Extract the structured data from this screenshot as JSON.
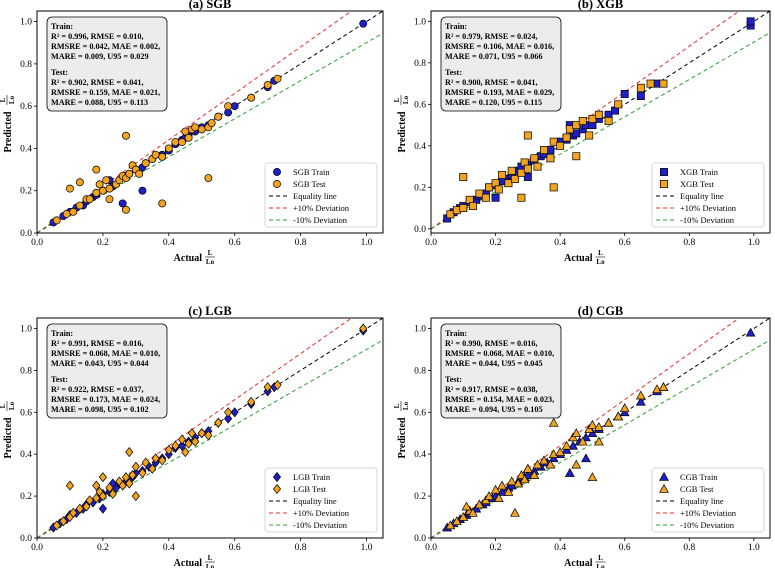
{
  "chart_data": [
    {
      "type": "scatter",
      "title": "(a) SGB",
      "xlabel": "Actual",
      "ylabel": "Predicted",
      "ratio_symbol": {
        "num": "L",
        "den": "Lo"
      },
      "xlim": [
        0,
        1.05
      ],
      "ylim": [
        0,
        1.05
      ],
      "xticks": [
        "0.0",
        "0.2",
        "0.4",
        "0.6",
        "0.8",
        "1.0"
      ],
      "yticks": [
        "0.0",
        "0.2",
        "0.4",
        "0.6",
        "0.8",
        "1.0"
      ],
      "marker": "circle",
      "legend": [
        "SGB Train",
        "SGB Test",
        "Equality line",
        "+10% Deviation",
        "-10% Deviation"
      ],
      "metrics": {
        "train_label": "Train:",
        "train_r2": "R² = 0.996, RMSE = 0.010,",
        "train_l2": "RMSRE = 0.042, MAE = 0.002,",
        "train_l3": "MARE = 0.009, U95 = 0.029",
        "test_label": "Test:",
        "test_r2": "R² = 0.902, RMSE = 0.041,",
        "test_l2": "RMSRE = 0.159, MAE = 0.021,",
        "test_l3": "MARE = 0.088, U95 = 0.113"
      },
      "series": [
        {
          "name": "SGB Train",
          "x": [
            0.05,
            0.08,
            0.1,
            0.12,
            0.14,
            0.15,
            0.17,
            0.18,
            0.2,
            0.22,
            0.23,
            0.25,
            0.27,
            0.28,
            0.3,
            0.32,
            0.33,
            0.35,
            0.38,
            0.4,
            0.42,
            0.44,
            0.45,
            0.46,
            0.48,
            0.5,
            0.52,
            0.55,
            0.58,
            0.6,
            0.65,
            0.7,
            0.72,
            0.99,
            0.22,
            0.26,
            0.32
          ],
          "y": [
            0.05,
            0.08,
            0.1,
            0.12,
            0.13,
            0.15,
            0.17,
            0.18,
            0.2,
            0.21,
            0.22,
            0.25,
            0.27,
            0.28,
            0.3,
            0.31,
            0.33,
            0.35,
            0.37,
            0.39,
            0.42,
            0.44,
            0.45,
            0.46,
            0.48,
            0.5,
            0.51,
            0.55,
            0.57,
            0.6,
            0.64,
            0.69,
            0.72,
            0.99,
            0.25,
            0.14,
            0.2
          ]
        },
        {
          "name": "SGB Test",
          "x": [
            0.06,
            0.09,
            0.1,
            0.11,
            0.13,
            0.15,
            0.16,
            0.18,
            0.19,
            0.2,
            0.21,
            0.22,
            0.24,
            0.25,
            0.26,
            0.27,
            0.28,
            0.29,
            0.3,
            0.31,
            0.33,
            0.35,
            0.36,
            0.38,
            0.4,
            0.42,
            0.44,
            0.45,
            0.46,
            0.47,
            0.48,
            0.5,
            0.52,
            0.53,
            0.55,
            0.58,
            0.65,
            0.7,
            0.73,
            0.27,
            0.18,
            0.38,
            0.22,
            0.27,
            0.13,
            0.52
          ],
          "y": [
            0.06,
            0.09,
            0.21,
            0.1,
            0.13,
            0.16,
            0.16,
            0.19,
            0.23,
            0.2,
            0.25,
            0.21,
            0.23,
            0.25,
            0.27,
            0.26,
            0.28,
            0.32,
            0.3,
            0.28,
            0.33,
            0.35,
            0.37,
            0.36,
            0.4,
            0.43,
            0.43,
            0.48,
            0.45,
            0.49,
            0.5,
            0.49,
            0.5,
            0.52,
            0.55,
            0.6,
            0.64,
            0.7,
            0.73,
            0.46,
            0.3,
            0.14,
            0.16,
            0.11,
            0.24,
            0.26
          ]
        }
      ]
    },
    {
      "type": "scatter",
      "title": "(b) XGB",
      "xlabel": "Actual",
      "ylabel": "Predicted",
      "ratio_symbol": {
        "num": "L",
        "den": "Lo"
      },
      "xlim": [
        0,
        1.05
      ],
      "ylim": [
        -0.02,
        1.05
      ],
      "xticks": [
        "0.0",
        "0.2",
        "0.4",
        "0.6",
        "0.8",
        "1.0"
      ],
      "yticks": [
        "0.0",
        "0.2",
        "0.4",
        "0.6",
        "0.8",
        "1.0"
      ],
      "marker": "square",
      "legend": [
        "XGB Train",
        "XGB Test",
        "Equality line",
        "+10% Deviation",
        "-10% Deviation"
      ],
      "metrics": {
        "train_label": "Train:",
        "train_r2": "R² = 0.979, RMSE = 0.024,",
        "train_l2": "RMSRE = 0.106, MAE = 0.016,",
        "train_l3": "MARE = 0.071, U95 = 0.066",
        "test_label": "Test:",
        "test_r2": "R² = 0.900, RMSE = 0.041,",
        "test_l2": "RMSRE = 0.193, MAE = 0.029,",
        "test_l3": "MARE = 0.120, U95 = 0.115"
      },
      "series": [
        {
          "name": "XGB Train",
          "x": [
            0.05,
            0.07,
            0.09,
            0.1,
            0.12,
            0.14,
            0.15,
            0.17,
            0.18,
            0.2,
            0.22,
            0.24,
            0.25,
            0.27,
            0.28,
            0.3,
            0.32,
            0.34,
            0.35,
            0.37,
            0.4,
            0.42,
            0.44,
            0.45,
            0.47,
            0.48,
            0.5,
            0.52,
            0.55,
            0.57,
            0.6,
            0.65,
            0.7,
            0.99,
            0.99,
            0.43,
            0.3,
            0.2
          ],
          "y": [
            0.05,
            0.08,
            0.1,
            0.11,
            0.13,
            0.14,
            0.16,
            0.17,
            0.2,
            0.21,
            0.23,
            0.24,
            0.26,
            0.28,
            0.3,
            0.31,
            0.33,
            0.35,
            0.36,
            0.38,
            0.42,
            0.43,
            0.45,
            0.46,
            0.48,
            0.5,
            0.5,
            0.53,
            0.55,
            0.57,
            0.65,
            0.64,
            0.7,
            0.98,
            1.0,
            0.5,
            0.25,
            0.15
          ]
        },
        {
          "name": "XGB Test",
          "x": [
            0.06,
            0.08,
            0.1,
            0.12,
            0.13,
            0.15,
            0.17,
            0.18,
            0.2,
            0.21,
            0.22,
            0.24,
            0.25,
            0.26,
            0.28,
            0.29,
            0.3,
            0.32,
            0.33,
            0.35,
            0.37,
            0.38,
            0.4,
            0.42,
            0.43,
            0.45,
            0.47,
            0.49,
            0.5,
            0.52,
            0.55,
            0.58,
            0.65,
            0.68,
            0.72,
            0.3,
            0.1,
            0.28,
            0.38,
            0.45
          ],
          "y": [
            0.07,
            0.09,
            0.1,
            0.14,
            0.11,
            0.17,
            0.15,
            0.2,
            0.22,
            0.19,
            0.26,
            0.22,
            0.28,
            0.24,
            0.27,
            0.32,
            0.29,
            0.34,
            0.3,
            0.38,
            0.34,
            0.42,
            0.4,
            0.44,
            0.48,
            0.5,
            0.52,
            0.45,
            0.53,
            0.55,
            0.52,
            0.6,
            0.68,
            0.7,
            0.7,
            0.45,
            0.25,
            0.15,
            0.2,
            0.35
          ]
        }
      ]
    },
    {
      "type": "scatter",
      "title": "(c) LGB",
      "xlabel": "Actual",
      "ylabel": "Predicted",
      "ratio_symbol": {
        "num": "L",
        "den": "Lo"
      },
      "xlim": [
        0,
        1.05
      ],
      "ylim": [
        0,
        1.05
      ],
      "xticks": [
        "0.0",
        "0.2",
        "0.4",
        "0.6",
        "0.8",
        "1.0"
      ],
      "yticks": [
        "0.0",
        "0.2",
        "0.4",
        "0.6",
        "0.8",
        "1.0"
      ],
      "marker": "diamond",
      "legend": [
        "LGB Train",
        "LGB Test",
        "Equality line",
        "+10% Deviation",
        "-10% Deviation"
      ],
      "metrics": {
        "train_label": "Train:",
        "train_r2": "R² = 0.991, RMSE = 0.016,",
        "train_l2": "RMSRE = 0.068, MAE = 0.010,",
        "train_l3": "MARE = 0.043, U95 = 0.044",
        "test_label": "Test:",
        "test_r2": "R² = 0.922, RMSE = 0.037,",
        "test_l2": "RMSRE = 0.173, MAE = 0.024,",
        "test_l3": "MARE = 0.098, U95 = 0.102"
      },
      "series": [
        {
          "name": "LGB Train",
          "x": [
            0.05,
            0.07,
            0.09,
            0.1,
            0.12,
            0.14,
            0.15,
            0.17,
            0.19,
            0.2,
            0.22,
            0.24,
            0.25,
            0.27,
            0.29,
            0.3,
            0.32,
            0.34,
            0.36,
            0.38,
            0.4,
            0.42,
            0.44,
            0.46,
            0.48,
            0.5,
            0.52,
            0.55,
            0.58,
            0.6,
            0.65,
            0.7,
            0.72,
            0.99,
            0.2,
            0.23
          ],
          "y": [
            0.05,
            0.07,
            0.09,
            0.11,
            0.12,
            0.14,
            0.16,
            0.17,
            0.19,
            0.21,
            0.22,
            0.24,
            0.26,
            0.27,
            0.29,
            0.31,
            0.32,
            0.34,
            0.36,
            0.38,
            0.4,
            0.43,
            0.44,
            0.46,
            0.48,
            0.5,
            0.51,
            0.55,
            0.57,
            0.6,
            0.64,
            0.7,
            0.72,
            0.99,
            0.14,
            0.26
          ]
        },
        {
          "name": "LGB Test",
          "x": [
            0.06,
            0.08,
            0.1,
            0.11,
            0.13,
            0.15,
            0.16,
            0.18,
            0.19,
            0.2,
            0.22,
            0.23,
            0.25,
            0.26,
            0.27,
            0.28,
            0.29,
            0.3,
            0.32,
            0.33,
            0.35,
            0.36,
            0.38,
            0.4,
            0.42,
            0.44,
            0.46,
            0.47,
            0.48,
            0.5,
            0.52,
            0.55,
            0.58,
            0.65,
            0.7,
            0.73,
            0.99,
            0.28,
            0.1,
            0.45,
            0.18,
            0.3,
            0.2
          ],
          "y": [
            0.06,
            0.08,
            0.1,
            0.12,
            0.14,
            0.15,
            0.18,
            0.19,
            0.22,
            0.2,
            0.24,
            0.21,
            0.27,
            0.25,
            0.29,
            0.26,
            0.3,
            0.34,
            0.31,
            0.36,
            0.33,
            0.38,
            0.37,
            0.42,
            0.44,
            0.47,
            0.45,
            0.5,
            0.46,
            0.5,
            0.49,
            0.55,
            0.6,
            0.65,
            0.72,
            0.73,
            1.0,
            0.41,
            0.25,
            0.41,
            0.25,
            0.2,
            0.29
          ]
        }
      ]
    },
    {
      "type": "scatter",
      "title": "(d) CGB",
      "xlabel": "Actual",
      "ylabel": "Predicted",
      "ratio_symbol": {
        "num": "L",
        "den": "Lo"
      },
      "xlim": [
        0,
        1.05
      ],
      "ylim": [
        0,
        1.05
      ],
      "xticks": [
        "0.0",
        "0.2",
        "0.4",
        "0.6",
        "0.8",
        "1.0"
      ],
      "yticks": [
        "0.0",
        "0.2",
        "0.4",
        "0.6",
        "0.8",
        "1.0"
      ],
      "marker": "triangle",
      "legend": [
        "CGB Train",
        "CGB Test",
        "Equality line",
        "+10% Deviation",
        "-10% Deviation"
      ],
      "metrics": {
        "train_label": "Train:",
        "train_r2": "R² = 0.990, RMSE = 0.016,",
        "train_l2": "RMSRE = 0.068, MAE = 0.010,",
        "train_l3": "MARE = 0.044, U95 = 0.045",
        "test_label": "Test:",
        "test_r2": "R² = 0.917, RMSE = 0.038,",
        "test_l2": "RMSRE = 0.154, MAE = 0.023,",
        "test_l3": "MARE = 0.094, U95 = 0.105"
      },
      "series": [
        {
          "name": "CGB Train",
          "x": [
            0.05,
            0.07,
            0.09,
            0.11,
            0.12,
            0.14,
            0.16,
            0.17,
            0.19,
            0.2,
            0.22,
            0.24,
            0.25,
            0.27,
            0.29,
            0.3,
            0.32,
            0.34,
            0.36,
            0.38,
            0.4,
            0.42,
            0.44,
            0.46,
            0.48,
            0.5,
            0.52,
            0.55,
            0.58,
            0.6,
            0.65,
            0.7,
            0.72,
            0.99,
            0.43,
            0.48
          ],
          "y": [
            0.05,
            0.07,
            0.09,
            0.11,
            0.12,
            0.14,
            0.16,
            0.17,
            0.19,
            0.2,
            0.22,
            0.24,
            0.25,
            0.27,
            0.29,
            0.3,
            0.32,
            0.34,
            0.36,
            0.38,
            0.4,
            0.42,
            0.44,
            0.46,
            0.48,
            0.5,
            0.52,
            0.55,
            0.58,
            0.6,
            0.65,
            0.7,
            0.72,
            0.98,
            0.31,
            0.38
          ]
        },
        {
          "name": "CGB Test",
          "x": [
            0.06,
            0.08,
            0.1,
            0.12,
            0.13,
            0.15,
            0.17,
            0.18,
            0.2,
            0.21,
            0.22,
            0.24,
            0.25,
            0.27,
            0.28,
            0.29,
            0.3,
            0.32,
            0.33,
            0.35,
            0.37,
            0.38,
            0.4,
            0.42,
            0.44,
            0.45,
            0.47,
            0.49,
            0.5,
            0.52,
            0.55,
            0.58,
            0.6,
            0.65,
            0.7,
            0.72,
            0.11,
            0.26,
            0.3,
            0.38,
            0.45,
            0.52,
            0.5
          ],
          "y": [
            0.06,
            0.08,
            0.1,
            0.13,
            0.12,
            0.16,
            0.18,
            0.2,
            0.23,
            0.19,
            0.25,
            0.22,
            0.27,
            0.26,
            0.3,
            0.28,
            0.33,
            0.3,
            0.35,
            0.37,
            0.35,
            0.4,
            0.41,
            0.44,
            0.48,
            0.5,
            0.46,
            0.52,
            0.54,
            0.53,
            0.55,
            0.58,
            0.62,
            0.68,
            0.71,
            0.72,
            0.15,
            0.12,
            0.33,
            0.55,
            0.35,
            0.46,
            0.29
          ]
        }
      ]
    }
  ],
  "colors": {
    "train_fill": "#1f1fc8",
    "test_fill": "#f2a31f",
    "equality": "#000000",
    "plus10": "#e8302a",
    "minus10": "#2ca02c",
    "box_bg": "#ececec"
  }
}
